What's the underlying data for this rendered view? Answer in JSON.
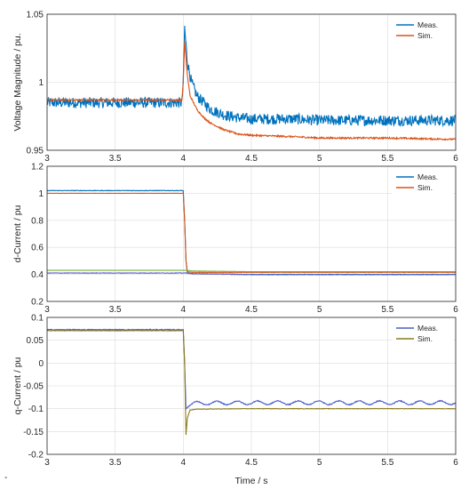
{
  "chart_data": [
    {
      "type": "line",
      "ylabel": "Voltage Magnitude / pu.",
      "xlabel": "",
      "xlim": [
        3,
        6
      ],
      "ylim": [
        0.95,
        1.05
      ],
      "xticks": [
        "3",
        "3.5",
        "4",
        "4.5",
        "5",
        "5.5",
        "6"
      ],
      "yticks": [
        "0.95",
        "1",
        "1.05"
      ],
      "grid": true,
      "legend": "top-right",
      "series": [
        {
          "name": "Meas.",
          "color": "#0072bd",
          "noise": 0.004,
          "x": [
            3.0,
            3.99,
            4.0,
            4.01,
            4.03,
            4.06,
            4.1,
            4.15,
            4.2,
            4.3,
            4.4,
            4.5,
            4.8,
            5.0,
            5.5,
            6.0
          ],
          "y": [
            0.985,
            0.985,
            1.0,
            1.04,
            1.015,
            1.0,
            0.99,
            0.985,
            0.98,
            0.976,
            0.974,
            0.973,
            0.973,
            0.972,
            0.972,
            0.972
          ]
        },
        {
          "name": "Sim.",
          "color": "#d95319",
          "noise": 0.0006,
          "x": [
            3.0,
            3.99,
            4.0,
            4.01,
            4.03,
            4.05,
            4.1,
            4.15,
            4.2,
            4.3,
            4.4,
            4.5,
            4.8,
            5.0,
            5.5,
            6.0
          ],
          "y": [
            0.987,
            0.987,
            1.0,
            1.03,
            1.005,
            0.99,
            0.98,
            0.974,
            0.97,
            0.965,
            0.962,
            0.961,
            0.96,
            0.959,
            0.959,
            0.958
          ]
        }
      ]
    },
    {
      "type": "line",
      "ylabel": "d-Current / pu",
      "xlabel": "",
      "xlim": [
        3,
        6
      ],
      "ylim": [
        0.2,
        1.2
      ],
      "xticks": [
        "3",
        "3.5",
        "4",
        "4.5",
        "5",
        "5.5",
        "6"
      ],
      "yticks": [
        "0.2",
        "0.4",
        "0.6",
        "0.8",
        "1",
        "1.2"
      ],
      "grid": true,
      "legend": "top-right",
      "series": [
        {
          "name": "Meas.",
          "color": "#0072bd",
          "noise": 0.002,
          "x": [
            3.0,
            4.0,
            4.01,
            4.02,
            4.03,
            4.06,
            4.5,
            6.0
          ],
          "y": [
            1.02,
            1.02,
            0.8,
            0.5,
            0.41,
            0.405,
            0.4,
            0.4
          ]
        },
        {
          "name": "Sim.",
          "color": "#d95319",
          "noise": 0.0008,
          "x": [
            3.0,
            4.0,
            4.01,
            4.02,
            4.03,
            4.06,
            4.5,
            6.0
          ],
          "y": [
            1.0,
            1.0,
            0.8,
            0.5,
            0.42,
            0.415,
            0.415,
            0.415
          ]
        },
        {
          "color": "#77ac30",
          "noise": 0.0,
          "x": [
            4.03,
            4.06,
            4.5,
            6.0
          ],
          "y": [
            0.43,
            0.425,
            0.42,
            0.42
          ]
        },
        {
          "color": "#5e5ed0",
          "noise": 0.002,
          "x": [
            4.03,
            4.06,
            4.5,
            6.0
          ],
          "y": [
            0.41,
            0.405,
            0.398,
            0.398
          ]
        }
      ]
    },
    {
      "type": "line",
      "ylabel": "q-Current / pu",
      "xlabel": "Time / s",
      "xlim": [
        3,
        6
      ],
      "ylim": [
        -0.2,
        0.1
      ],
      "xticks": [
        "3",
        "3.5",
        "4",
        "4.5",
        "5",
        "5.5",
        "6"
      ],
      "yticks": [
        "-0.2",
        "-0.15",
        "-0.1",
        "-0.05",
        "0",
        "0.05",
        "0.1"
      ],
      "grid": true,
      "legend": "top-right",
      "series": [
        {
          "name": "Meas.",
          "color": "#4a5ec8",
          "noise": 0.001,
          "ripple": 0.004,
          "x": [
            3.0,
            4.0,
            4.01,
            4.02,
            4.04,
            4.06,
            4.1,
            4.5,
            6.0
          ],
          "y": [
            0.073,
            0.073,
            0.0,
            -0.1,
            -0.095,
            -0.09,
            -0.088,
            -0.087,
            -0.087
          ]
        },
        {
          "name": "Sim.",
          "color": "#8b7a1a",
          "noise": 0.0005,
          "x": [
            3.0,
            4.0,
            4.01,
            4.02,
            4.03,
            4.05,
            4.1,
            4.5,
            6.0
          ],
          "y": [
            0.071,
            0.071,
            0.0,
            -0.157,
            -0.12,
            -0.103,
            -0.101,
            -0.1,
            -0.1
          ]
        }
      ]
    }
  ],
  "footnote": "-"
}
